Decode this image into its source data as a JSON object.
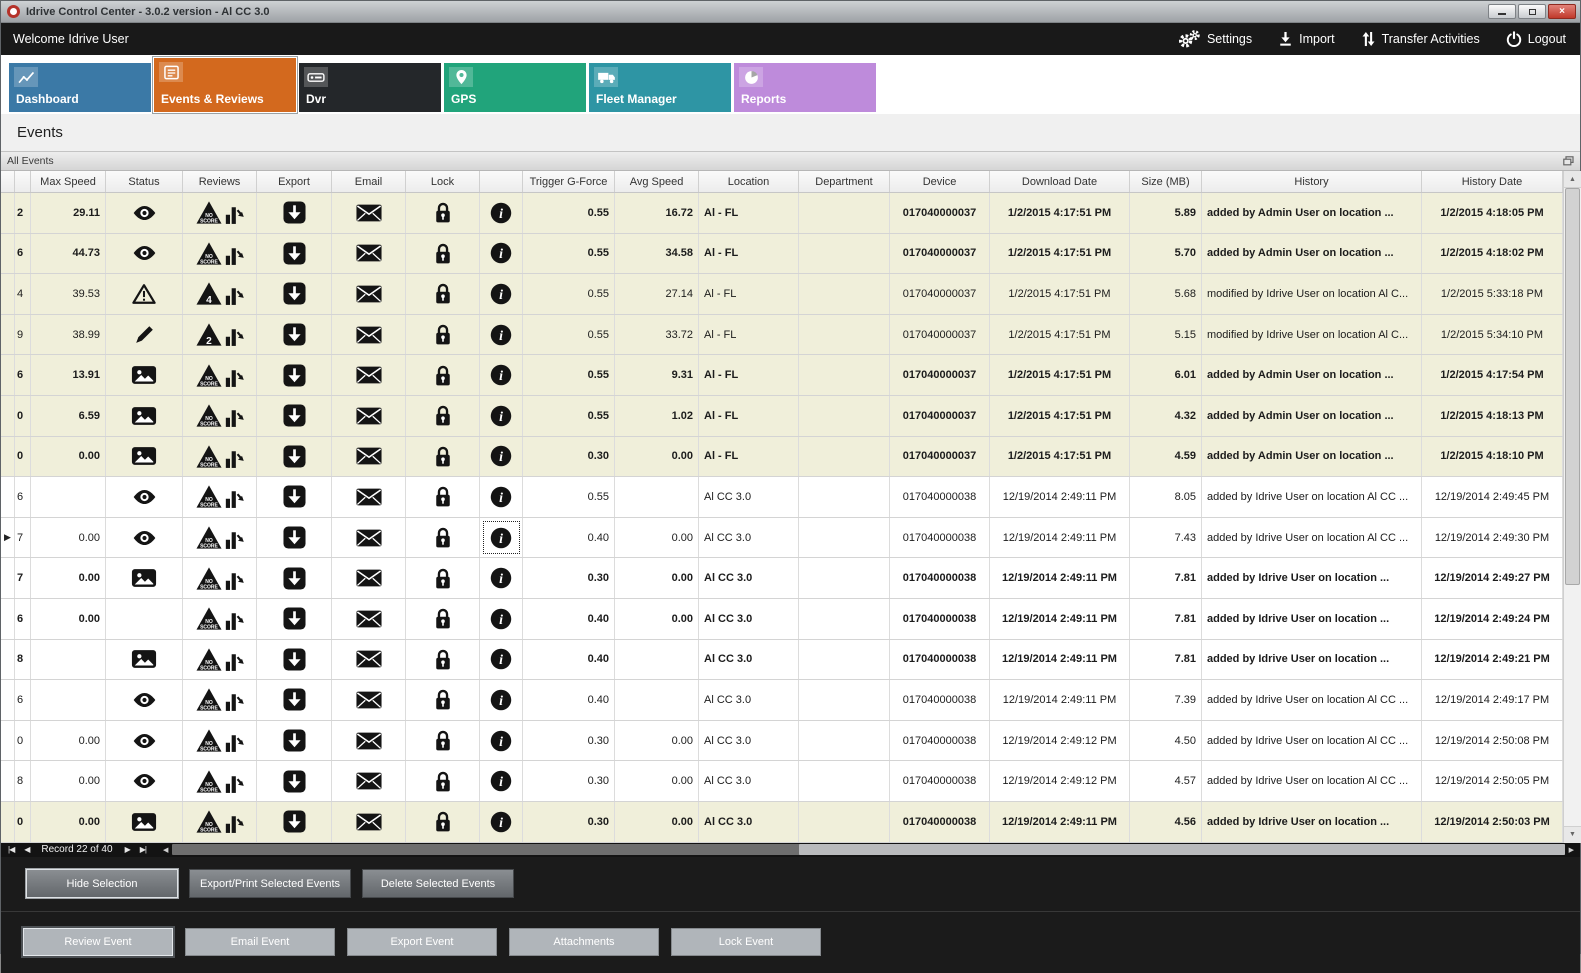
{
  "window": {
    "title": "Idrive Control Center - 3.0.2 version - Al CC 3.0"
  },
  "colors": {
    "shaded_row": "#F0EFDA",
    "active_tab": "#D3691E",
    "topbar_bg": "#191919"
  },
  "topbar": {
    "welcome": "Welcome Idrive User",
    "actions": [
      {
        "label": "Settings",
        "icon": "settings-gears-icon"
      },
      {
        "label": "Import",
        "icon": "import-icon"
      },
      {
        "label": "Transfer Activities",
        "icon": "transfer-icon"
      },
      {
        "label": "Logout",
        "icon": "power-icon"
      }
    ]
  },
  "tabs": [
    {
      "label": "Dashboard",
      "icon": "chart-line-icon",
      "color": "#3B79A6",
      "active": false
    },
    {
      "label": "Events & Reviews",
      "icon": "events-list-icon",
      "color": "#D3691E",
      "active": true
    },
    {
      "label": "Dvr",
      "icon": "dvr-icon",
      "color": "#24272A",
      "active": false
    },
    {
      "label": "GPS",
      "icon": "map-pin-icon",
      "color": "#21A47B",
      "active": false
    },
    {
      "label": "Fleet Manager",
      "icon": "truck-icon",
      "color": "#2E95A4",
      "active": false
    },
    {
      "label": "Reports",
      "icon": "pie-chart-icon",
      "color": "#BE8BDB",
      "active": false
    }
  ],
  "page_title": "Events",
  "panel": {
    "title": "All Events"
  },
  "record_nav": {
    "label": "Record 22 of 40"
  },
  "footer": {
    "row1": [
      "Hide Selection",
      "Export/Print Selected Events",
      "Delete Selected  Events"
    ],
    "row2": [
      "Review Event",
      "Email Event",
      "Export Event",
      "Attachments",
      "Lock Event"
    ]
  },
  "table": {
    "columns": [
      {
        "key": "marker",
        "label": ""
      },
      {
        "key": "id",
        "label": ""
      },
      {
        "key": "max_speed",
        "label": "Max Speed"
      },
      {
        "key": "status",
        "label": "Status"
      },
      {
        "key": "reviews",
        "label": "Reviews"
      },
      {
        "key": "export",
        "label": "Export",
        "icon": "export-icon"
      },
      {
        "key": "email",
        "label": "Email",
        "icon": "email-icon"
      },
      {
        "key": "lock",
        "label": "Lock",
        "icon": "lock-icon"
      },
      {
        "key": "info",
        "label": "",
        "icon": "info-icon"
      },
      {
        "key": "trigger_g_force",
        "label": "Trigger G-Force"
      },
      {
        "key": "avg_speed",
        "label": "Avg Speed"
      },
      {
        "key": "location",
        "label": "Location"
      },
      {
        "key": "department",
        "label": "Department"
      },
      {
        "key": "device",
        "label": "Device"
      },
      {
        "key": "download_date",
        "label": "Download Date"
      },
      {
        "key": "size_mb",
        "label": "Size (MB)"
      },
      {
        "key": "history",
        "label": "History"
      },
      {
        "key": "history_date",
        "label": "History Date"
      }
    ],
    "rows": [
      {
        "id": "2",
        "max_speed": "29.11",
        "status": "eye-icon",
        "review": "NO SCORE",
        "trigger_g_force": "0.55",
        "avg_speed": "16.72",
        "location": "Al - FL",
        "department": "",
        "device": "017040000037",
        "download_date": "1/2/2015 4:17:51 PM",
        "size_mb": "5.89",
        "history": "added by Admin User on location ...",
        "history_date": "1/2/2015 4:18:05 PM",
        "bold": true,
        "shaded": true,
        "selected": false
      },
      {
        "id": "6",
        "max_speed": "44.73",
        "status": "eye-icon",
        "review": "NO SCORE",
        "trigger_g_force": "0.55",
        "avg_speed": "34.58",
        "location": "Al - FL",
        "department": "",
        "device": "017040000037",
        "download_date": "1/2/2015 4:17:51 PM",
        "size_mb": "5.70",
        "history": "added by Admin User on location ...",
        "history_date": "1/2/2015 4:18:02 PM",
        "bold": true,
        "shaded": true,
        "selected": false
      },
      {
        "id": "4",
        "max_speed": "39.53",
        "status": "warning-icon",
        "review": "4",
        "trigger_g_force": "0.55",
        "avg_speed": "27.14",
        "location": "Al - FL",
        "department": "",
        "device": "017040000037",
        "download_date": "1/2/2015 4:17:51 PM",
        "size_mb": "5.68",
        "history": "modified by Idrive User on location Al C...",
        "history_date": "1/2/2015 5:33:18 PM",
        "bold": false,
        "shaded": true,
        "selected": false
      },
      {
        "id": "9",
        "max_speed": "38.99",
        "status": "pencil-icon",
        "review": "2",
        "trigger_g_force": "0.55",
        "avg_speed": "33.72",
        "location": "Al - FL",
        "department": "",
        "device": "017040000037",
        "download_date": "1/2/2015 4:17:51 PM",
        "size_mb": "5.15",
        "history": "modified by Idrive User on location Al C...",
        "history_date": "1/2/2015 5:34:10 PM",
        "bold": false,
        "shaded": true,
        "selected": false
      },
      {
        "id": "6",
        "max_speed": "13.91",
        "status": "photo-icon",
        "review": "NO SCORE",
        "trigger_g_force": "0.55",
        "avg_speed": "9.31",
        "location": "Al - FL",
        "department": "",
        "device": "017040000037",
        "download_date": "1/2/2015 4:17:51 PM",
        "size_mb": "6.01",
        "history": "added by Admin User on location ...",
        "history_date": "1/2/2015 4:17:54 PM",
        "bold": true,
        "shaded": true,
        "selected": false
      },
      {
        "id": "0",
        "max_speed": "6.59",
        "status": "photo-icon",
        "review": "NO SCORE",
        "trigger_g_force": "0.55",
        "avg_speed": "1.02",
        "location": "Al - FL",
        "department": "",
        "device": "017040000037",
        "download_date": "1/2/2015 4:17:51 PM",
        "size_mb": "4.32",
        "history": "added by Admin User on location ...",
        "history_date": "1/2/2015 4:18:13 PM",
        "bold": true,
        "shaded": true,
        "selected": false
      },
      {
        "id": "0",
        "max_speed": "0.00",
        "status": "photo-icon",
        "review": "NO SCORE",
        "trigger_g_force": "0.30",
        "avg_speed": "0.00",
        "location": "Al - FL",
        "department": "",
        "device": "017040000037",
        "download_date": "1/2/2015 4:17:51 PM",
        "size_mb": "4.59",
        "history": "added by Admin User on location ...",
        "history_date": "1/2/2015 4:18:10 PM",
        "bold": true,
        "shaded": true,
        "selected": false
      },
      {
        "id": "6",
        "max_speed": "",
        "status": "eye-icon",
        "review": "NO SCORE",
        "trigger_g_force": "0.55",
        "avg_speed": "",
        "location": "Al CC 3.0",
        "department": "",
        "device": "017040000038",
        "download_date": "12/19/2014 2:49:11 PM",
        "size_mb": "8.05",
        "history": "added by Idrive User on location Al CC ...",
        "history_date": "12/19/2014 2:49:45 PM",
        "bold": false,
        "shaded": false,
        "selected": false
      },
      {
        "id": "7",
        "max_speed": "0.00",
        "status": "eye-icon",
        "review": "NO SCORE",
        "trigger_g_force": "0.40",
        "avg_speed": "0.00",
        "location": "Al CC 3.0",
        "department": "",
        "device": "017040000038",
        "download_date": "12/19/2014 2:49:11 PM",
        "size_mb": "7.43",
        "history": "added by Idrive User on location Al CC ...",
        "history_date": "12/19/2014 2:49:30 PM",
        "bold": false,
        "shaded": false,
        "selected": true
      },
      {
        "id": "7",
        "max_speed": "0.00",
        "status": "photo-icon",
        "review": "NO SCORE",
        "trigger_g_force": "0.30",
        "avg_speed": "0.00",
        "location": "Al CC 3.0",
        "department": "",
        "device": "017040000038",
        "download_date": "12/19/2014 2:49:11 PM",
        "size_mb": "7.81",
        "history": "added by Idrive User on location ...",
        "history_date": "12/19/2014 2:49:27 PM",
        "bold": true,
        "shaded": false,
        "selected": false
      },
      {
        "id": "6",
        "max_speed": "0.00",
        "status": "",
        "review": "NO SCORE",
        "trigger_g_force": "0.40",
        "avg_speed": "0.00",
        "location": "Al CC 3.0",
        "department": "",
        "device": "017040000038",
        "download_date": "12/19/2014 2:49:11 PM",
        "size_mb": "7.81",
        "history": "added by Idrive User on location ...",
        "history_date": "12/19/2014 2:49:24 PM",
        "bold": true,
        "shaded": false,
        "selected": false
      },
      {
        "id": "8",
        "max_speed": "",
        "status": "photo-icon",
        "review": "NO SCORE",
        "trigger_g_force": "0.40",
        "avg_speed": "",
        "location": "Al CC 3.0",
        "department": "",
        "device": "017040000038",
        "download_date": "12/19/2014 2:49:11 PM",
        "size_mb": "7.81",
        "history": "added by Idrive User on location ...",
        "history_date": "12/19/2014 2:49:21 PM",
        "bold": true,
        "shaded": false,
        "selected": false
      },
      {
        "id": "6",
        "max_speed": "",
        "status": "eye-icon",
        "review": "NO SCORE",
        "trigger_g_force": "0.40",
        "avg_speed": "",
        "location": "Al CC 3.0",
        "department": "",
        "device": "017040000038",
        "download_date": "12/19/2014 2:49:11 PM",
        "size_mb": "7.39",
        "history": "added by Idrive User on location Al CC ...",
        "history_date": "12/19/2014 2:49:17 PM",
        "bold": false,
        "shaded": false,
        "selected": false
      },
      {
        "id": "0",
        "max_speed": "0.00",
        "status": "eye-icon",
        "review": "NO SCORE",
        "trigger_g_force": "0.30",
        "avg_speed": "0.00",
        "location": "Al CC 3.0",
        "department": "",
        "device": "017040000038",
        "download_date": "12/19/2014 2:49:12 PM",
        "size_mb": "4.50",
        "history": "added by Idrive User on location Al CC ...",
        "history_date": "12/19/2014 2:50:08 PM",
        "bold": false,
        "shaded": false,
        "selected": false
      },
      {
        "id": "8",
        "max_speed": "0.00",
        "status": "eye-icon",
        "review": "NO SCORE",
        "trigger_g_force": "0.30",
        "avg_speed": "0.00",
        "location": "Al CC 3.0",
        "department": "",
        "device": "017040000038",
        "download_date": "12/19/2014 2:49:12 PM",
        "size_mb": "4.57",
        "history": "added by Idrive User on location Al CC ...",
        "history_date": "12/19/2014 2:50:05 PM",
        "bold": false,
        "shaded": false,
        "selected": false
      },
      {
        "id": "0",
        "max_speed": "0.00",
        "status": "photo-icon",
        "review": "NO SCORE",
        "trigger_g_force": "0.30",
        "avg_speed": "0.00",
        "location": "Al CC 3.0",
        "department": "",
        "device": "017040000038",
        "download_date": "12/19/2014 2:49:11 PM",
        "size_mb": "4.56",
        "history": "added by Idrive User on location ...",
        "history_date": "12/19/2014 2:50:03 PM",
        "bold": true,
        "shaded": true,
        "selected": false
      }
    ]
  }
}
